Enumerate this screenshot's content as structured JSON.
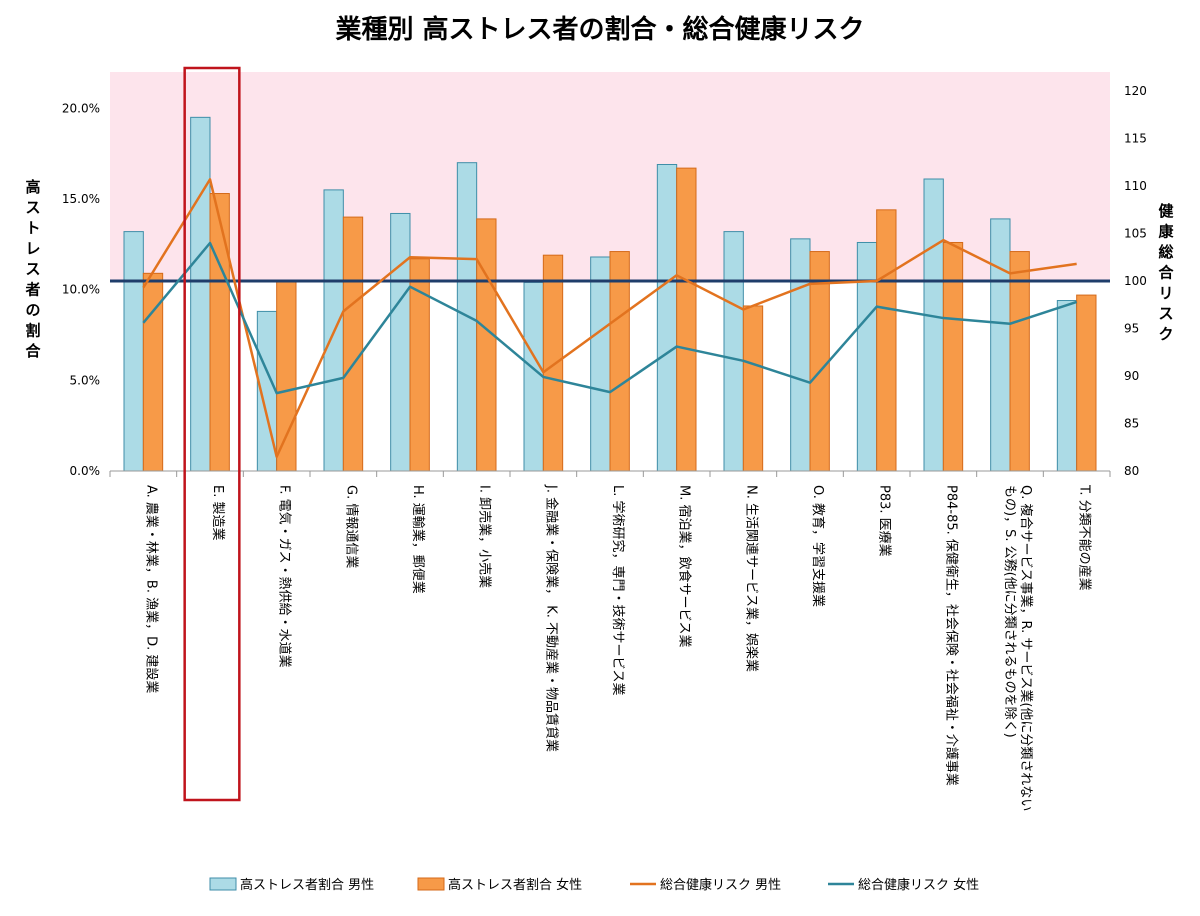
{
  "chart_data": {
    "type": "bar",
    "title": "業種別 高ストレス者の割合・総合健康リスク",
    "ylabel_left": "高ストレス者の割合",
    "ylabel_right": "健康総合リスク",
    "ylim_left": [
      0,
      0.22
    ],
    "ylim_right": [
      80,
      122
    ],
    "left_ticks": [
      "0.0%",
      "5.0%",
      "10.0%",
      "15.0%",
      "20.0%"
    ],
    "left_tick_values": [
      0,
      0.05,
      0.1,
      0.15,
      0.2
    ],
    "right_ticks": [
      "80",
      "85",
      "90",
      "95",
      "100",
      "105",
      "110",
      "115",
      "120"
    ],
    "right_tick_values": [
      80,
      85,
      90,
      95,
      100,
      105,
      110,
      115,
      120
    ],
    "reference_line": 100,
    "reference_line_color": "#1f3d6b",
    "shaded_band": {
      "from": 100,
      "to": 122,
      "color": "#fde4ec"
    },
    "highlight_category_index": 1,
    "highlight_color": "#c0141c",
    "categories": [
      "A. 農業・林業，B. 漁業，D. 建設業",
      "E. 製造業",
      "F. 電気・ガス・熱供給・水道業",
      "G. 情報通信業",
      "H. 運輸業，郵便業",
      "I. 卸売業，小売業",
      "J. 金融業・保険業， K. 不動産業・物品賃貸業",
      "L. 学術研究，専門・技術サービス業",
      "M. 宿泊業，飲食サービス業",
      "N. 生活関連サービス業，娯楽業",
      "O. 教育，学習支援業",
      "P83. 医療業",
      "P84-85. 保健衛生，社会保険・社会福祉・介護事業",
      "Q. 複合サービス事業，R. サービス業(他に分類されないもの)，S. 公務(他に分類されるものを除く)",
      "T. 分類不能の産業"
    ],
    "category_lines": [
      [
        "A. 農業・林業，B. 漁業，D. 建設業"
      ],
      [
        "E. 製造業"
      ],
      [
        "F. 電気・ガス・熱供給・水道業"
      ],
      [
        "G. 情報通信業"
      ],
      [
        "H. 運輸業，郵便業"
      ],
      [
        "I. 卸売業，小売業"
      ],
      [
        "J. 金融業・保険業， K. 不動産業・物品賃貸業"
      ],
      [
        "L. 学術研究，専門・技術サービス業"
      ],
      [
        "M. 宿泊業，飲食サービス業"
      ],
      [
        "N. 生活関連サービス業，娯楽業"
      ],
      [
        "O. 教育，学習支援業"
      ],
      [
        "P83. 医療業"
      ],
      [
        "P84-85. 保健衛生，社会保険・社会福祉・介護事業"
      ],
      [
        "Q. 複合サービス事業，R. サービス業(他に分類されない",
        "もの)，S. 公務(他に分類されるものを除く)"
      ],
      [
        "T. 分類不能の産業"
      ]
    ],
    "series": [
      {
        "name": "高ストレス者割合 男性",
        "type": "bar",
        "axis": "left",
        "color": "#acdbe6",
        "stroke": "#3f8ea8",
        "values": [
          0.132,
          0.195,
          0.088,
          0.155,
          0.142,
          0.17,
          0.104,
          0.118,
          0.169,
          0.132,
          0.128,
          0.126,
          0.161,
          0.139,
          0.094
        ]
      },
      {
        "name": "高ストレス者割合 女性",
        "type": "bar",
        "axis": "left",
        "color": "#f79a48",
        "stroke": "#d46a1a",
        "values": [
          0.109,
          0.153,
          0.105,
          0.14,
          0.117,
          0.139,
          0.119,
          0.121,
          0.167,
          0.091,
          0.121,
          0.144,
          0.126,
          0.121,
          0.097
        ]
      },
      {
        "name": "総合健康リスク 男性",
        "type": "line",
        "axis": "right",
        "color": "#e2731f",
        "values": [
          99.3,
          110.7,
          81.5,
          96.8,
          102.5,
          102.3,
          90.4,
          95.5,
          100.6,
          97.0,
          99.7,
          100.0,
          104.3,
          100.8,
          101.8
        ]
      },
      {
        "name": "総合健康リスク 女性",
        "type": "line",
        "axis": "right",
        "color": "#2e8599",
        "values": [
          95.6,
          104.0,
          88.2,
          89.8,
          99.4,
          95.8,
          89.9,
          88.3,
          93.1,
          91.6,
          89.3,
          97.3,
          96.1,
          95.5,
          97.8
        ]
      }
    ],
    "legend_position": "bottom",
    "grid": false
  }
}
